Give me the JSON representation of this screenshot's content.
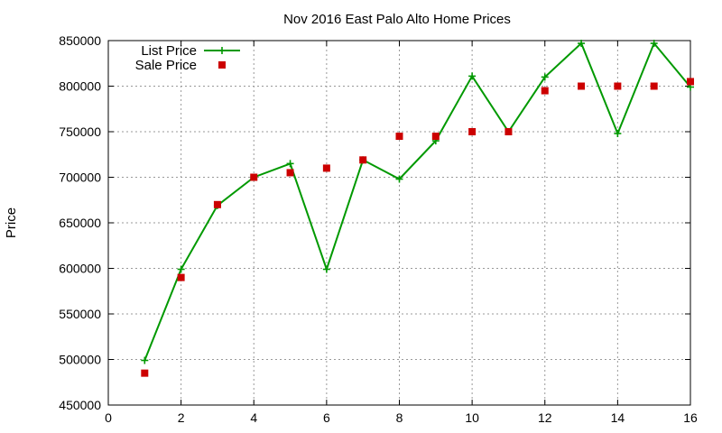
{
  "chart_data": {
    "type": "line",
    "title": "Nov 2016 East Palo Alto Home Prices",
    "xlabel": "",
    "ylabel": "Price",
    "xlim": [
      0,
      16
    ],
    "ylim": [
      450000,
      850000
    ],
    "xticks": [
      0,
      2,
      4,
      6,
      8,
      10,
      12,
      14,
      16
    ],
    "yticks": [
      450000,
      500000,
      550000,
      600000,
      650000,
      700000,
      750000,
      800000,
      850000
    ],
    "grid": true,
    "legend_position": "top-left",
    "series": [
      {
        "name": "List Price",
        "style": "line-with-plus-markers",
        "color": "#009900",
        "x": [
          1,
          2,
          3,
          4,
          5,
          6,
          7,
          8,
          9,
          10,
          11,
          12,
          13,
          14,
          15,
          16
        ],
        "values": [
          499000,
          599000,
          669000,
          700000,
          715000,
          599000,
          719000,
          698000,
          740000,
          811000,
          750000,
          810000,
          847000,
          748000,
          847000,
          799000
        ]
      },
      {
        "name": "Sale Price",
        "style": "square-markers",
        "color": "#cc0000",
        "x": [
          1,
          2,
          3,
          4,
          5,
          6,
          7,
          8,
          9,
          10,
          11,
          12,
          13,
          14,
          15,
          16
        ],
        "values": [
          485000,
          590000,
          670000,
          700000,
          705000,
          710000,
          719000,
          745000,
          745000,
          750000,
          750000,
          795000,
          800000,
          800000,
          800000,
          805000
        ]
      }
    ]
  }
}
